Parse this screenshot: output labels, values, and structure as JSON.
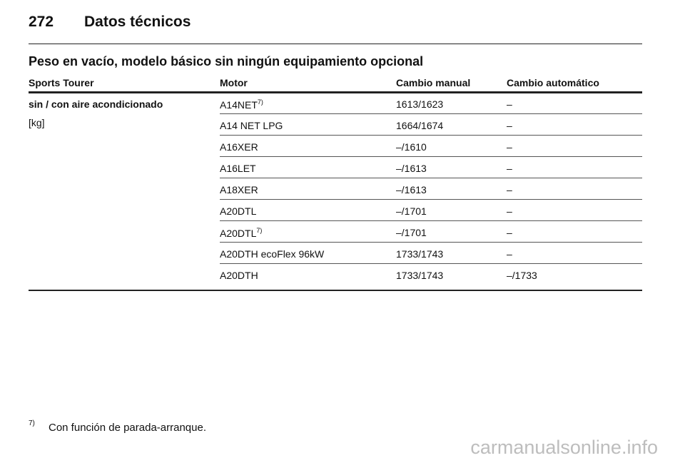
{
  "header": {
    "page_number": "272",
    "title": "Datos técnicos"
  },
  "section": {
    "title": "Peso en vacío, modelo básico sin ningún equipamiento opcional"
  },
  "table": {
    "columns": [
      "Sports Tourer",
      "Motor",
      "Cambio manual",
      "Cambio automático"
    ],
    "group": {
      "label": "sin / con aire acondicionado",
      "unit": "[kg]"
    },
    "rows": [
      {
        "motor": "A14NET",
        "note": "7)",
        "manual": "1613/1623",
        "auto": "–"
      },
      {
        "motor": "A14 NET LPG",
        "manual": "1664/1674",
        "auto": "–"
      },
      {
        "motor": "A16XER",
        "manual": "–/1610",
        "auto": "–"
      },
      {
        "motor": "A16LET",
        "manual": "–/1613",
        "auto": "–"
      },
      {
        "motor": "A18XER",
        "manual": "–/1613",
        "auto": "–"
      },
      {
        "motor": "A20DTL",
        "manual": "–/1701",
        "auto": "–"
      },
      {
        "motor": "A20DTL",
        "note": "7)",
        "manual": "–/1701",
        "auto": "–"
      },
      {
        "motor": "A20DTH ecoFlex 96kW",
        "manual": "1733/1743",
        "auto": "–"
      },
      {
        "motor": "A20DTH",
        "manual": "1733/1743",
        "auto": "–/1733"
      }
    ]
  },
  "footnote": {
    "mark": "7)",
    "text": "Con función de parada-arranque."
  },
  "watermark": "carmanualsonline.info"
}
